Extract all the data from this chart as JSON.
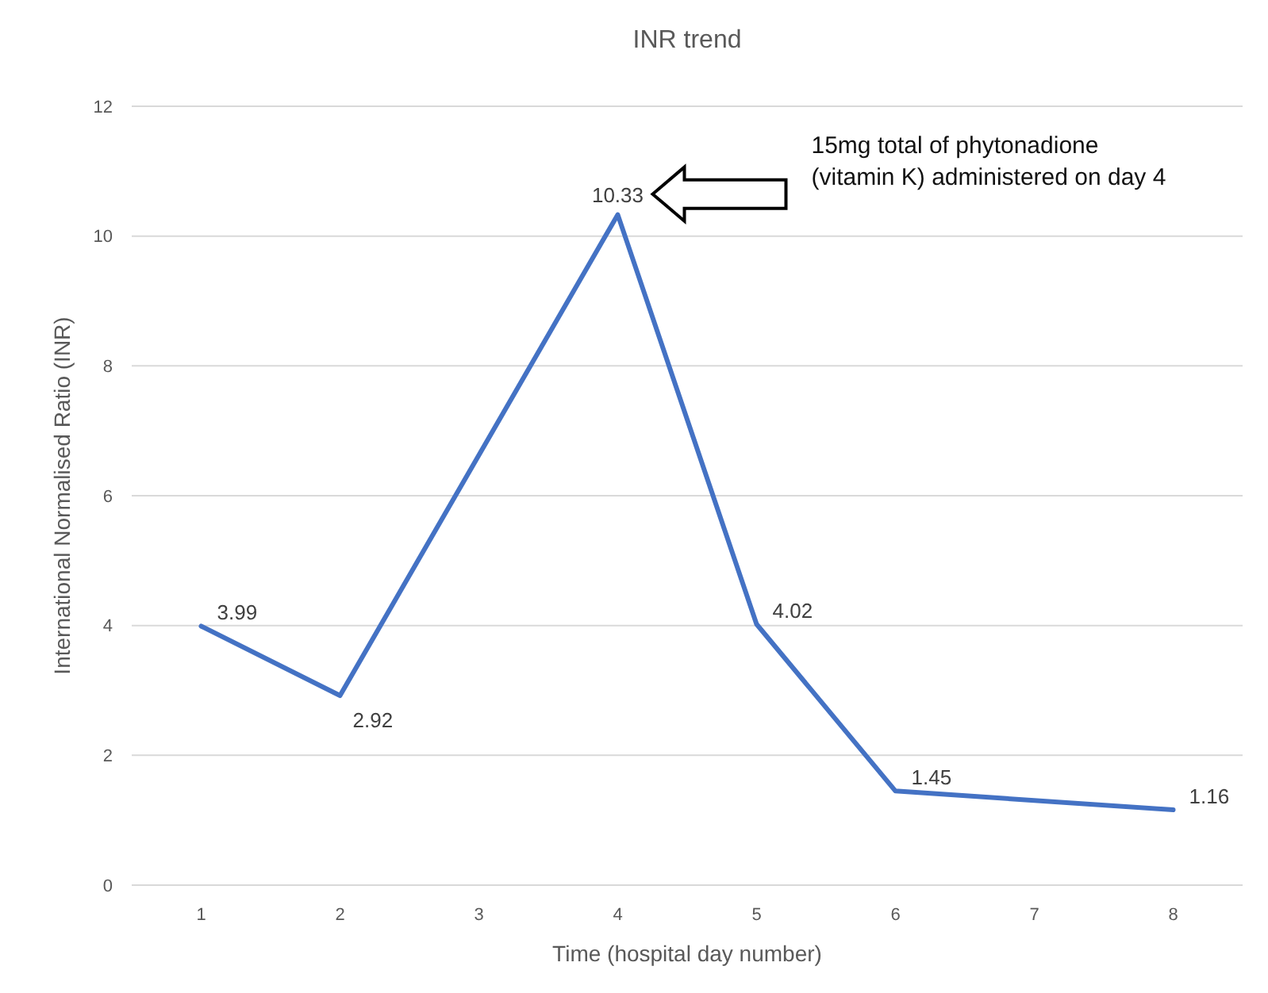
{
  "chart_data": {
    "type": "line",
    "title": "INR trend",
    "xlabel": "Time (hospital day number)",
    "ylabel": "International Normalised Ratio (INR)",
    "x": [
      1,
      2,
      4,
      5,
      6,
      8
    ],
    "series": [
      {
        "color": "#4472c4",
        "values": [
          3.99,
          2.92,
          10.33,
          4.02,
          1.45,
          1.16
        ]
      }
    ],
    "xlim": [
      0.5,
      8.5
    ],
    "xticks": [
      1,
      2,
      3,
      4,
      5,
      6,
      7,
      8
    ],
    "ylim": [
      0,
      12
    ],
    "yticks": [
      0,
      2,
      4,
      6,
      8,
      10,
      12
    ],
    "grid": "y",
    "data_labels": true,
    "marker": "none",
    "line_style": "solid",
    "annotations": [
      "15mg total of phytonadione (vitamin K) administered on day 4"
    ]
  }
}
